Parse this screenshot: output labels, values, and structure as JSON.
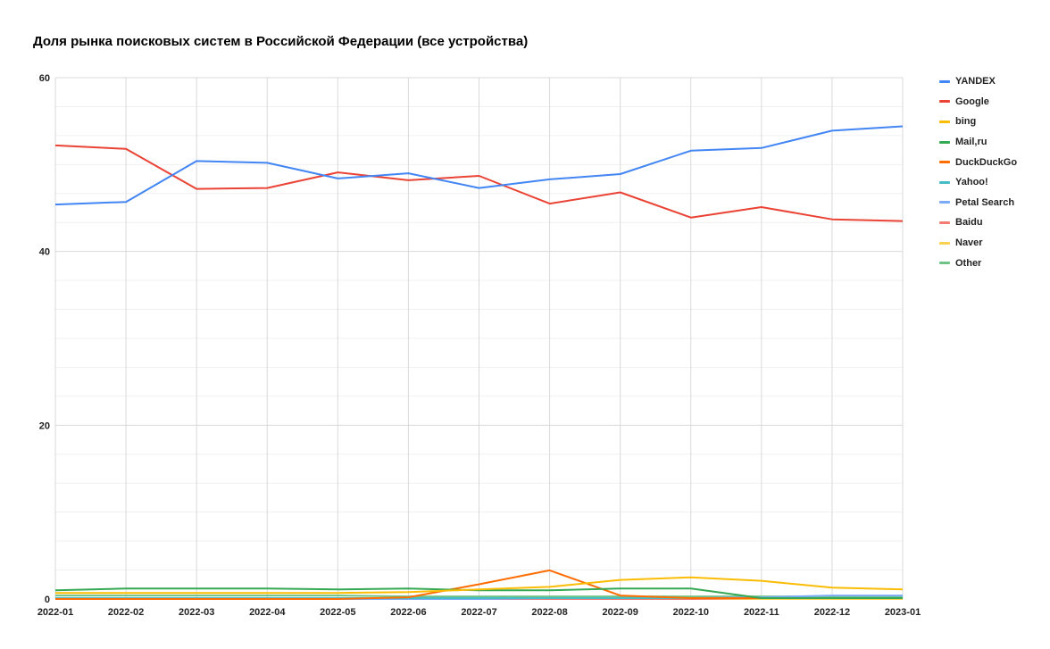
{
  "chart_data": {
    "type": "line",
    "title": "Доля рынка поисковых систем в Российской Федерации (все устройства)",
    "xlabel": "",
    "ylabel": "",
    "ylim": [
      0,
      60
    ],
    "yticks": [
      "60",
      "40",
      "20",
      "0"
    ],
    "grid": true,
    "legend_position": "right",
    "categories": [
      "2022-01",
      "2022-02",
      "2022-03",
      "2022-04",
      "2022-05",
      "2022-06",
      "2022-07",
      "2022-08",
      "2022-09",
      "2022-10",
      "2022-11",
      "2022-12",
      "2023-01"
    ],
    "series": [
      {
        "name": "YANDEX",
        "color": "#4285f4",
        "values": [
          45.4,
          45.7,
          50.4,
          50.2,
          48.4,
          49.0,
          47.3,
          48.3,
          48.9,
          51.6,
          51.9,
          53.9,
          54.4
        ]
      },
      {
        "name": "Google",
        "color": "#ea4335",
        "values": [
          52.2,
          51.8,
          47.2,
          47.3,
          49.1,
          48.2,
          48.7,
          45.5,
          46.8,
          43.9,
          45.1,
          43.7,
          43.5
        ]
      },
      {
        "name": "bing",
        "color": "#fbbc04",
        "values": [
          0.7,
          0.7,
          0.7,
          0.7,
          0.7,
          0.8,
          1.1,
          1.4,
          2.2,
          2.5,
          2.1,
          1.3,
          1.1
        ]
      },
      {
        "name": "Mail,ru",
        "color": "#34a853",
        "values": [
          1.0,
          1.2,
          1.2,
          1.2,
          1.1,
          1.2,
          1.0,
          1.0,
          1.2,
          1.2,
          0.1,
          0.1,
          0.1
        ]
      },
      {
        "name": "DuckDuckGo",
        "color": "#ff6d01",
        "values": [
          0.0,
          0.0,
          0.0,
          0.0,
          0.0,
          0.2,
          1.7,
          3.3,
          0.4,
          0.1,
          0.1,
          0.1,
          0.1
        ]
      },
      {
        "name": "Yahoo!",
        "color": "#46bdc6",
        "values": [
          0.1,
          0.1,
          0.1,
          0.1,
          0.1,
          0.1,
          0.1,
          0.1,
          0.1,
          0.1,
          0.1,
          0.1,
          0.1
        ]
      },
      {
        "name": "Petal Search",
        "color": "#7baaf7",
        "values": [
          0.0,
          0.0,
          0.0,
          0.0,
          0.0,
          0.0,
          0.0,
          0.1,
          0.1,
          0.1,
          0.2,
          0.4,
          0.4
        ]
      },
      {
        "name": "Baidu",
        "color": "#f07b72",
        "values": [
          0.0,
          0.0,
          0.0,
          0.0,
          0.0,
          0.0,
          0.0,
          0.0,
          0.0,
          0.0,
          0.1,
          0.1,
          0.1
        ]
      },
      {
        "name": "Naver",
        "color": "#fcd04f",
        "values": [
          0.0,
          0.0,
          0.0,
          0.0,
          0.0,
          0.0,
          0.0,
          0.0,
          0.0,
          0.0,
          0.0,
          0.0,
          0.0
        ]
      },
      {
        "name": "Other",
        "color": "#71c287",
        "values": [
          0.4,
          0.4,
          0.4,
          0.4,
          0.4,
          0.3,
          0.3,
          0.3,
          0.3,
          0.3,
          0.3,
          0.3,
          0.3
        ]
      }
    ]
  }
}
